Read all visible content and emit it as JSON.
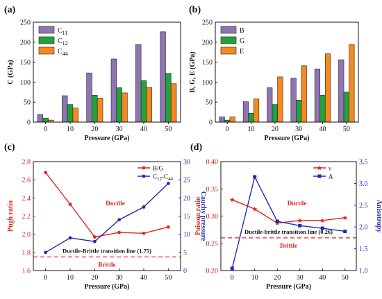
{
  "chart_data": [
    {
      "id": "a",
      "panel_label": "(a)",
      "type": "bar",
      "xlabel": "Pressure (GPa)",
      "ylabel": "C (GPa)",
      "ylim": [
        0,
        250
      ],
      "yticks": [
        0,
        50,
        100,
        150,
        200,
        250
      ],
      "categories": [
        "0",
        "10",
        "20",
        "30",
        "40",
        "50"
      ],
      "legend_position": "top-left",
      "series": [
        {
          "name": "C",
          "sub": "11",
          "color": "#8e75b2",
          "values": [
            19,
            66,
            123,
            158,
            194,
            226
          ]
        },
        {
          "name": "C",
          "sub": "12",
          "color": "#22a33a",
          "values": [
            10,
            44,
            67,
            86,
            104,
            122
          ]
        },
        {
          "name": "C",
          "sub": "44",
          "color": "#f7881f",
          "values": [
            5,
            35,
            60,
            73,
            87,
            96
          ]
        }
      ]
    },
    {
      "id": "b",
      "panel_label": "(b)",
      "type": "bar",
      "xlabel": "Pressure (GPa)",
      "ylabel": "B, G, E (GPa)",
      "ylim": [
        0,
        250
      ],
      "yticks": [
        0,
        50,
        100,
        150,
        200,
        250
      ],
      "categories": [
        "0",
        "10",
        "20",
        "30",
        "40",
        "50"
      ],
      "legend_position": "top-left",
      "series": [
        {
          "name": "B",
          "color": "#8e75b2",
          "values": [
            13,
            51,
            86,
            110,
            133,
            156
          ]
        },
        {
          "name": "G",
          "color": "#22a33a",
          "values": [
            5,
            22,
            44,
            55,
            67,
            75
          ]
        },
        {
          "name": "E",
          "color": "#f7881f",
          "values": [
            13,
            58,
            113,
            141,
            171,
            194
          ]
        }
      ]
    },
    {
      "id": "c",
      "panel_label": "(c)",
      "type": "line",
      "xlabel": "Pressure (GPa)",
      "ylabel": "Pugh ratio",
      "y2label": "Cauchy pressure",
      "x": [
        0,
        10,
        20,
        30,
        40,
        50
      ],
      "xticks": [
        0,
        10,
        20,
        30,
        40,
        50
      ],
      "xlim": [
        -5,
        55
      ],
      "ylim": [
        1.6,
        2.8
      ],
      "yticks": [
        "1.6",
        "1.8",
        "2.0",
        "2.2",
        "2.4",
        "2.6",
        "2.8"
      ],
      "y2lim": [
        0,
        30
      ],
      "y2ticks": [
        0,
        5,
        10,
        15,
        20,
        25,
        30
      ],
      "legend_position": "top-right",
      "series": [
        {
          "name": "B/G",
          "axis": "left",
          "color": "#e52421",
          "marker": "circle",
          "values": [
            2.68,
            2.33,
            1.97,
            2.02,
            2.01,
            2.08
          ]
        },
        {
          "name": "C",
          "sub": "12",
          "name_suffix": "-C",
          "sub2": "44",
          "axis": "right",
          "color": "#1f2bb3",
          "marker": "circle",
          "values": [
            5,
            9,
            8,
            14,
            17.5,
            24
          ]
        }
      ],
      "reference_line": {
        "y": 1.75,
        "color": "#e52421",
        "label": "Ductile-Brittle transition line (1.75)"
      },
      "annotations": {
        "upper": "Ductile",
        "lower": "Brittle"
      }
    },
    {
      "id": "d",
      "panel_label": "(d)",
      "type": "line",
      "xlabel": "Pressure (GPa)",
      "ylabel": "Poisson ratio",
      "y2label": "Anisotropy",
      "x": [
        0,
        10,
        20,
        30,
        40,
        50
      ],
      "xticks": [
        0,
        10,
        20,
        30,
        40,
        50
      ],
      "xlim": [
        -5,
        55
      ],
      "ylim": [
        0.2,
        0.4
      ],
      "yticks": [
        "0.20",
        "0.25",
        "0.30",
        "0.35",
        "0.40"
      ],
      "y2lim": [
        1.0,
        3.5
      ],
      "y2ticks": [
        "1.0",
        "1.5",
        "2.0",
        "2.5",
        "3.0",
        "3.5"
      ],
      "legend_position": "top-right",
      "series": [
        {
          "name": "ν",
          "axis": "left",
          "color": "#e52421",
          "marker": "star",
          "values": [
            0.33,
            0.313,
            0.287,
            0.292,
            0.292,
            0.297
          ]
        },
        {
          "name": "A",
          "axis": "right",
          "color": "#1f2bb3",
          "marker": "square",
          "values": [
            1.05,
            3.15,
            2.13,
            2.03,
            1.97,
            1.9
          ]
        }
      ],
      "reference_line": {
        "y": 0.26,
        "color": "#e52421",
        "label": "Ductile-brittle transition line (0.26)"
      },
      "annotations": {
        "upper": "Ductile",
        "lower": "Brittle"
      }
    }
  ]
}
